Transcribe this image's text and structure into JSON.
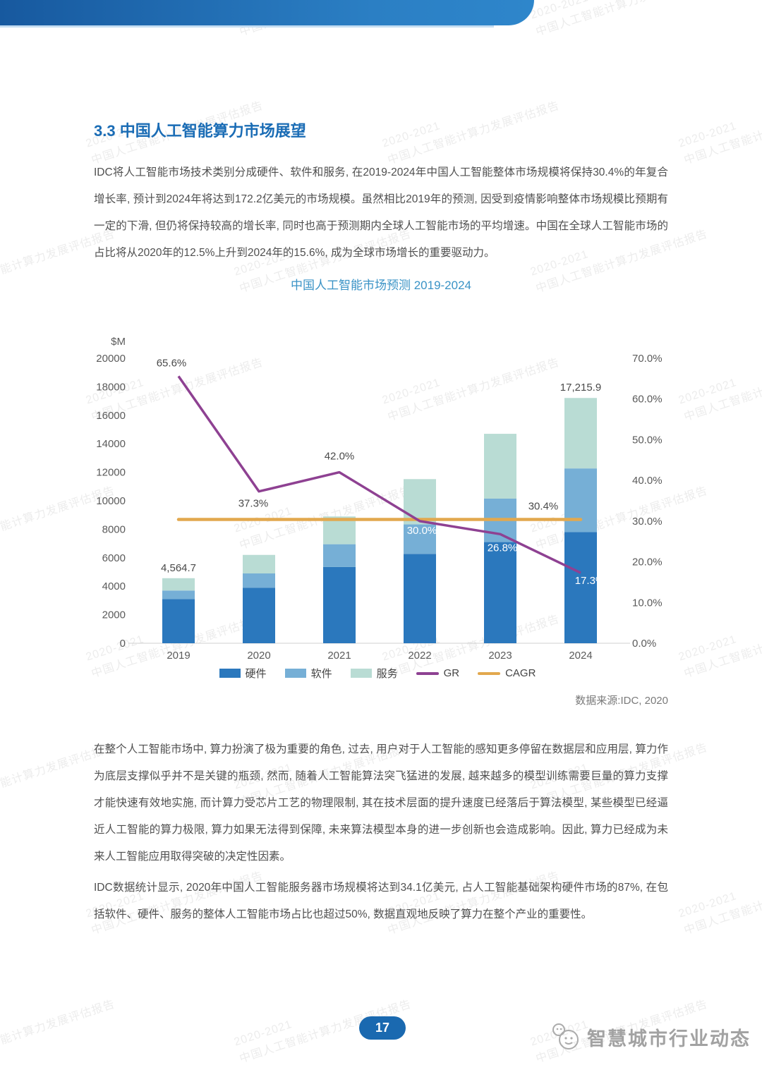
{
  "section": {
    "title": "3.3 中国人工智能算力市场展望"
  },
  "paragraphs": {
    "p1": "IDC将人工智能市场技术类别分成硬件、软件和服务, 在2019-2024年中国人工智能整体市场规模将保持30.4%的年复合增长率, 预计到2024年将达到172.2亿美元的市场规模。虽然相比2019年的预测, 因受到疫情影响整体市场规模比预期有一定的下滑, 但仍将保持较高的增长率, 同时也高于预测期内全球人工智能市场的平均增速。中国在全球人工智能市场的占比将从2020年的12.5%上升到2024年的15.6%, 成为全球市场增长的重要驱动力。",
    "p2": "在整个人工智能市场中, 算力扮演了极为重要的角色, 过去, 用户对于人工智能的感知更多停留在数据层和应用层, 算力作为底层支撑似乎并不是关键的瓶颈, 然而, 随着人工智能算法突飞猛进的发展, 越来越多的模型训练需要巨量的算力支撑才能快速有效地实施, 而计算力受芯片工艺的物理限制, 其在技术层面的提升速度已经落后于算法模型, 某些模型已经逼近人工智能的算力极限, 算力如果无法得到保障, 未来算法模型本身的进一步创新也会造成影响。因此, 算力已经成为未来人工智能应用取得突破的决定性因素。",
    "p3": "IDC数据统计显示, 2020年中国人工智能服务器市场规模将达到34.1亿美元, 占人工智能基础架构硬件市场的87%, 在包括软件、硬件、服务的整体人工智能市场占比也超过50%, 数据直观地反映了算力在整个产业的重要性。"
  },
  "chart_data": {
    "type": "bar",
    "subtype": "stacked-bar-with-lines",
    "title": "中国人工智能市场预测 2019-2024",
    "source": "数据来源:IDC, 2020",
    "categories": [
      "2019",
      "2020",
      "2021",
      "2022",
      "2023",
      "2024"
    ],
    "series": [
      {
        "key": "hardware",
        "name": "硬件",
        "kind": "bar",
        "color": "#2b78bd",
        "values": [
          3100,
          3900,
          5350,
          6270,
          7100,
          7800
        ]
      },
      {
        "key": "software",
        "name": "软件",
        "kind": "bar",
        "color": "#76afd6",
        "values": [
          600,
          1000,
          1600,
          2070,
          3050,
          4470
        ]
      },
      {
        "key": "services",
        "name": "服务",
        "kind": "bar",
        "color": "#b9dcd4",
        "values": [
          864.7,
          1300,
          1950,
          3180,
          4550,
          4945.9
        ]
      },
      {
        "key": "gr",
        "name": "GR",
        "kind": "line",
        "axis": "right",
        "color": "#8e4192",
        "values": [
          65.6,
          37.3,
          42.0,
          30.0,
          26.8,
          17.3
        ]
      },
      {
        "key": "cagr",
        "name": "CAGR",
        "kind": "line",
        "axis": "right",
        "color": "#e2a84e",
        "values": [
          30.4,
          30.4,
          30.4,
          30.4,
          30.4,
          30.4
        ]
      }
    ],
    "totals": [
      4564.7,
      6200,
      8900,
      11520,
      14700,
      17215.9
    ],
    "total_labels": [
      {
        "index": 0,
        "text": "4,564.7"
      },
      {
        "index": 5,
        "text": "17,215.9"
      }
    ],
    "gr_point_labels": [
      "65.6%",
      "37.3%",
      "42.0%",
      "30.0%",
      "26.8%",
      "17.3%"
    ],
    "cagr_label": "30.4%",
    "left_axis": {
      "title": "$M",
      "min": 0,
      "max": 20000,
      "step": 2000
    },
    "right_axis": {
      "min": 0,
      "max": 70,
      "step": 10,
      "suffix": "%"
    },
    "legend_position": "bottom",
    "grid": false
  },
  "footer": {
    "page_number": "17",
    "logo_text": "智慧城市行业动态"
  },
  "watermark": {
    "line1": "2020-2021",
    "line2": "中国人工智能计算力发展评估报告"
  }
}
